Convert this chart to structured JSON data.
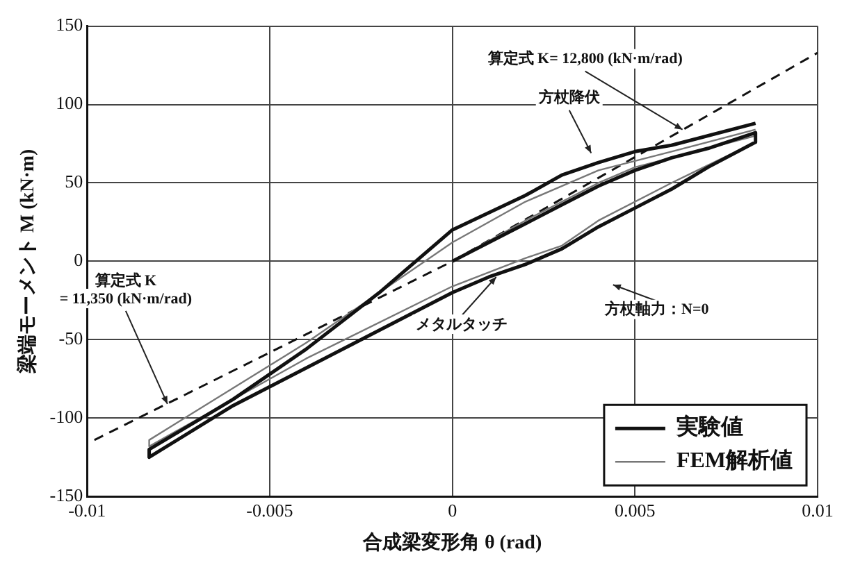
{
  "chart_data": {
    "type": "line",
    "xlabel": "合成梁変形角 θ (rad)",
    "ylabel": "梁端モーメント M (kN·m)",
    "xlim": [
      -0.01,
      0.01
    ],
    "xticks": [
      -0.01,
      -0.005,
      0,
      0.005,
      0.01
    ],
    "ylim": [
      -150,
      150
    ],
    "yticks": [
      -150,
      -100,
      -50,
      0,
      50,
      100,
      150
    ],
    "grid": true,
    "legend": "bottom right",
    "marker": "none",
    "series": [
      {
        "name": "実験値",
        "color": "#111111",
        "line_style": "solid",
        "x": [
          0,
          0.001,
          0.002,
          0.003,
          0.004,
          0.005,
          0.006,
          0.007,
          0.0083,
          0.0083,
          0.007,
          0.006,
          0.005,
          0.004,
          0.003,
          0.002,
          0.001,
          0,
          -0.002,
          -0.004,
          -0.006,
          -0.0083,
          -0.0083,
          -0.006,
          -0.004,
          -0.002,
          0,
          0.002,
          0.003,
          0.004,
          0.005,
          0.006,
          0.0083
        ],
        "values": [
          0,
          12,
          24,
          36,
          48,
          58,
          66,
          72,
          82,
          76,
          60,
          46,
          34,
          22,
          8,
          -2,
          -10,
          -20,
          -44,
          -68,
          -92,
          -125,
          -120,
          -88,
          -56,
          -20,
          20,
          42,
          55,
          63,
          70,
          74,
          88
        ]
      },
      {
        "name": "FEM解析値",
        "color": "#777777",
        "line_style": "solid",
        "x": [
          0,
          0.002,
          0.004,
          0.005,
          0.006,
          0.0083,
          0.0083,
          0.006,
          0.004,
          0.003,
          0.002,
          0,
          -0.004,
          -0.0083,
          -0.0083,
          -0.004,
          0,
          0.002,
          0.004,
          0.006,
          0.0083
        ],
        "values": [
          0,
          26,
          50,
          60,
          66,
          80,
          76,
          50,
          26,
          10,
          2,
          -16,
          -62,
          -118,
          -114,
          -52,
          12,
          38,
          58,
          70,
          84
        ]
      },
      {
        "color": "#111111",
        "line_style": "dashed",
        "x": [
          -0.0098,
          0,
          0.01
        ],
        "values": [
          -114,
          0,
          133
        ]
      }
    ],
    "annotations": [
      {
        "text": "算定式 K= 12,800 (kN·m/rad)",
        "x": 0.0063,
        "y": 84
      },
      "方杖降伏",
      {
        "text": "算定式 K\n= 11,350 (kN·m/rad)",
        "x": -0.0078,
        "y": -91
      },
      {
        "text": "メタルタッチ",
        "x": 0.0012,
        "y": -10
      },
      "方杖軸力：N=0"
    ]
  }
}
